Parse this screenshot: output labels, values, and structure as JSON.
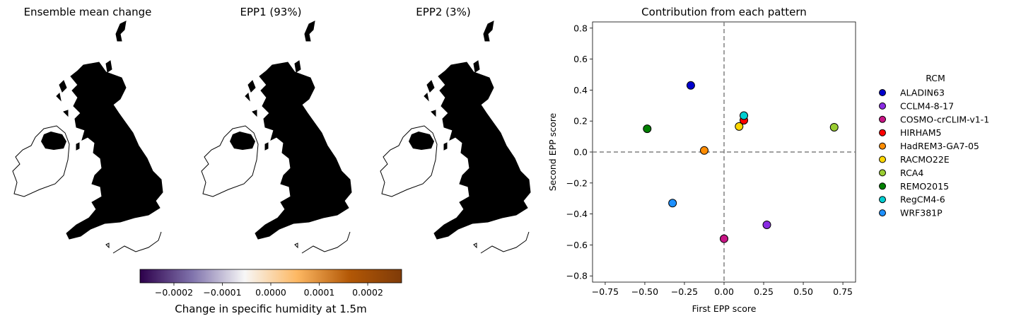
{
  "maps": {
    "panels": [
      {
        "title": "Ensemble mean change",
        "fill_intensity": 1.0
      },
      {
        "title": "EPP1 (93%)",
        "fill_intensity": 0.95
      },
      {
        "title": "EPP2 (3%)",
        "fill_intensity": 0.15
      }
    ],
    "colorbar": {
      "label": "Change in specific humidity at 1.5m",
      "range": [
        -0.00027,
        0.00027
      ],
      "ticks": [
        {
          "value": -0.0002,
          "label": "−0.0002"
        },
        {
          "value": -0.0001,
          "label": "−0.0001"
        },
        {
          "value": 0.0,
          "label": "0.0000"
        },
        {
          "value": 0.0001,
          "label": "0.0001"
        },
        {
          "value": 0.0002,
          "label": "0.0002"
        }
      ],
      "colormap": [
        "#2d004b",
        "#8073ac",
        "#f7f7f7",
        "#fdb863",
        "#b35806",
        "#7f3b08"
      ]
    }
  },
  "chart_data": {
    "type": "scatter",
    "title": "Contribution from each pattern",
    "xlabel": "First EPP score",
    "ylabel": "Second EPP score",
    "xlim": [
      -0.83,
      0.83
    ],
    "ylim": [
      -0.84,
      0.84
    ],
    "xticks": [
      {
        "value": -0.75,
        "label": "−0.75"
      },
      {
        "value": -0.5,
        "label": "−0.50"
      },
      {
        "value": -0.25,
        "label": "−0.25"
      },
      {
        "value": 0.0,
        "label": "0.00"
      },
      {
        "value": 0.25,
        "label": "0.25"
      },
      {
        "value": 0.5,
        "label": "0.50"
      },
      {
        "value": 0.75,
        "label": "0.75"
      }
    ],
    "yticks": [
      {
        "value": -0.8,
        "label": "−0.8"
      },
      {
        "value": -0.6,
        "label": "−0.6"
      },
      {
        "value": -0.4,
        "label": "−0.4"
      },
      {
        "value": -0.2,
        "label": "−0.2"
      },
      {
        "value": 0.0,
        "label": "0.0"
      },
      {
        "value": 0.2,
        "label": "0.2"
      },
      {
        "value": 0.4,
        "label": "0.4"
      },
      {
        "value": 0.6,
        "label": "0.6"
      },
      {
        "value": 0.8,
        "label": "0.8"
      }
    ],
    "reference_lines": {
      "x": 0,
      "y": 0,
      "style": "dashed",
      "color": "#808080"
    },
    "legend": {
      "title": "RCM",
      "placement": "outside-right"
    },
    "series": [
      {
        "name": "ALADIN63",
        "color": "#0000cd",
        "x": -0.21,
        "y": 0.43
      },
      {
        "name": "CCLM4-8-17",
        "color": "#8a2be2",
        "x": 0.27,
        "y": -0.47
      },
      {
        "name": "COSMO-crCLIM-v1-1",
        "color": "#c71585",
        "x": 0.0,
        "y": -0.56
      },
      {
        "name": "HIRHAM5",
        "color": "#ff0000",
        "x": 0.125,
        "y": 0.205
      },
      {
        "name": "HadREM3-GA7-05",
        "color": "#ff8c00",
        "x": -0.125,
        "y": 0.01
      },
      {
        "name": "RACMO22E",
        "color": "#ffd700",
        "x": 0.095,
        "y": 0.165
      },
      {
        "name": "RCA4",
        "color": "#9acd32",
        "x": 0.695,
        "y": 0.16
      },
      {
        "name": "REMO2015",
        "color": "#008000",
        "x": -0.485,
        "y": 0.15
      },
      {
        "name": "RegCM4-6",
        "color": "#00ced1",
        "x": 0.125,
        "y": 0.235
      },
      {
        "name": "WRF381P",
        "color": "#1e90ff",
        "x": -0.325,
        "y": -0.33
      }
    ]
  }
}
